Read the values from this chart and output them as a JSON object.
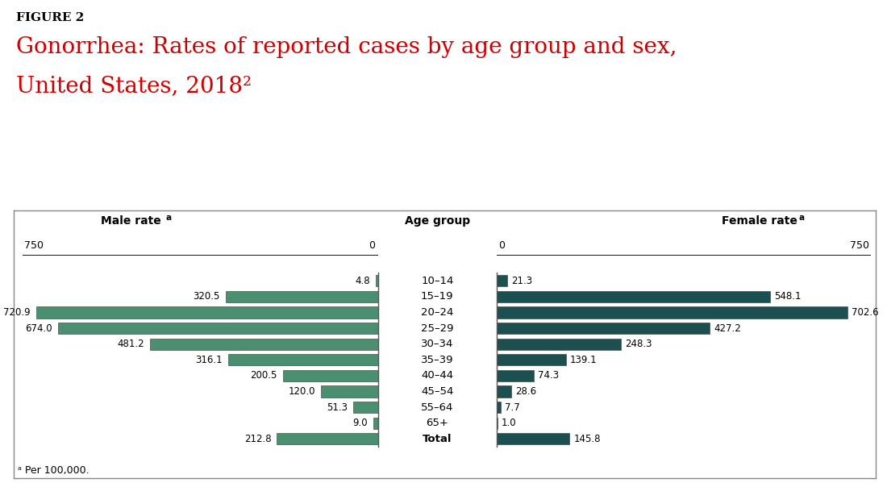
{
  "age_groups": [
    "10–14",
    "15–19",
    "20–24",
    "25–29",
    "30–34",
    "35–39",
    "40–44",
    "45–54",
    "55–64",
    "65+",
    "Total"
  ],
  "male_values": [
    4.8,
    320.5,
    720.9,
    674.0,
    481.2,
    316.1,
    200.5,
    120.0,
    51.3,
    9.0,
    212.8
  ],
  "female_values": [
    21.3,
    548.1,
    702.6,
    427.2,
    248.3,
    139.1,
    74.3,
    28.6,
    7.7,
    1.0,
    145.8
  ],
  "male_color": "#4a9070",
  "female_color": "#1c4f4f",
  "xlim": 750,
  "figure_label": "FIGURE 2",
  "title_line1": "Gonorrhea: Rates of reported cases by age group and sex,",
  "title_line2": "United States, 2018²",
  "title_color": "#cc0000",
  "male_header": "Male rate",
  "female_header": "Female rate",
  "superscript_a": "a",
  "age_group_header": "Age group",
  "footnote": "ᵃ Per 100,000.",
  "background_color": "#ffffff",
  "chart_bg": "#ffffff",
  "border_color": "#555555"
}
